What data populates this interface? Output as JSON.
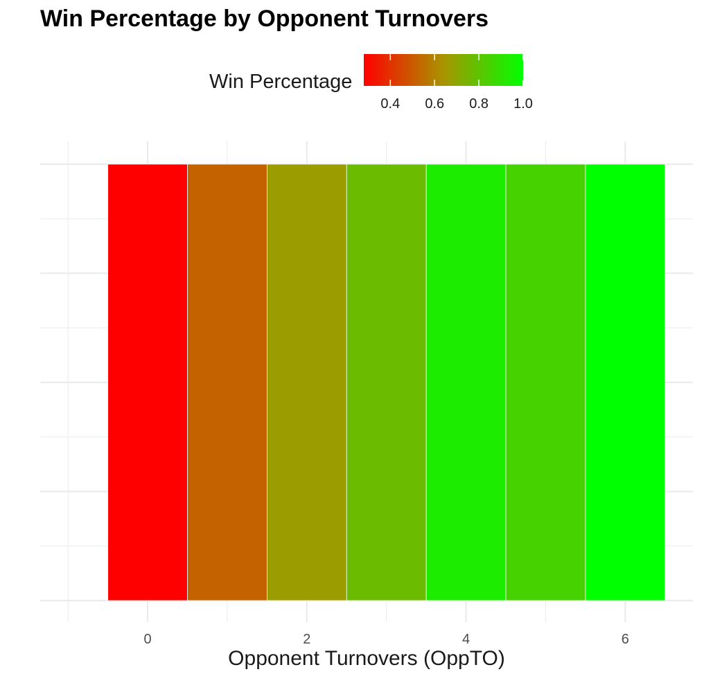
{
  "chart_data": {
    "type": "heatmap",
    "title": "Win Percentage by Opponent Turnovers",
    "xlabel": "Opponent Turnovers (OppTO)",
    "ylabel": "",
    "x": [
      0,
      1,
      2,
      3,
      4,
      5,
      6
    ],
    "values": [
      0.28,
      0.52,
      0.67,
      0.77,
      0.94,
      0.85,
      1.0
    ],
    "x_ticks": [
      0,
      2,
      4,
      6
    ],
    "x_tick_labels": [
      "0",
      "2",
      "4",
      "6"
    ],
    "xlim": [
      -1.35,
      6.85
    ],
    "legend": {
      "title": "Win Percentage",
      "placement": "top",
      "range": [
        0.28,
        1.0
      ],
      "ticks": [
        0.4,
        0.6,
        0.8,
        1.0
      ],
      "tick_labels": [
        "0.4",
        "0.6",
        "0.8",
        "1.0"
      ],
      "low_color": "#ff0000",
      "high_color": "#00ff00"
    },
    "grid": true
  }
}
